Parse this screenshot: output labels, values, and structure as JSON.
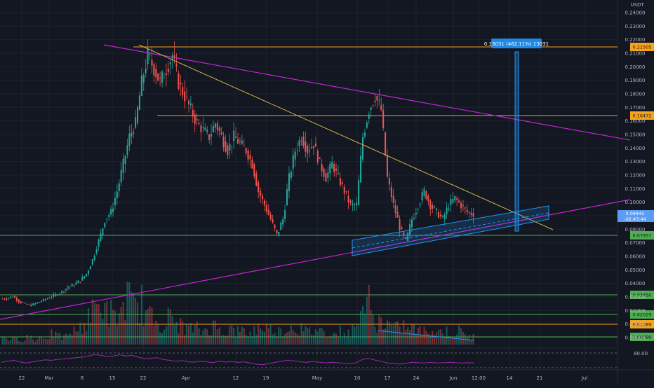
{
  "header": {
    "currency": "USDT"
  },
  "colors": {
    "background": "#131722",
    "grid": "#1e222d",
    "up": "#26a69a",
    "down": "#ef5350",
    "orange": "#f7a21b",
    "green": "#4caf50",
    "magenta": "#c026d3",
    "yellow": "#d4b24a",
    "blue": "#2196f3",
    "rsi": "#9c27b0",
    "price_tag": "#5b9cf6",
    "axis_text": "#b2b5be"
  },
  "chart_data": [
    {
      "type": "candlestick",
      "panel": "price",
      "x_ticks": [
        "22",
        "Mar",
        "8",
        "15",
        "22",
        "Apr",
        "12",
        "19",
        "May",
        "10",
        "17",
        "24",
        "Jun",
        "12:00",
        "14",
        "21",
        "Jul"
      ],
      "y_ticks": [
        "0.24000",
        "0.23000",
        "0.22000",
        "0.21000",
        "0.20000",
        "0.19000",
        "0.18000",
        "0.17000",
        "0.16000",
        "0.15000",
        "0.14000",
        "0.13000",
        "0.12000",
        "0.11000",
        "0.10000",
        "0.09000",
        "0.08000",
        "0.07000",
        "0.06000",
        "0.05000",
        "0.04000",
        "0.03000",
        "0.02000",
        "0.01000",
        "0.00000"
      ],
      "scale": "log",
      "last_price": "0.09445",
      "countdown": "-02:43:44",
      "horizontal_levels": [
        {
          "label": "0.21505",
          "value": 0.21505,
          "color": "orange"
        },
        {
          "label": "0.16472",
          "value": 0.16472,
          "color": "orange"
        },
        {
          "label": "0.07957",
          "value": 0.07957,
          "color": "green"
        },
        {
          "label": "0.03450",
          "value": 0.0345,
          "color": "green"
        },
        {
          "label": "0.02029",
          "value": 0.02029,
          "color": "green"
        },
        {
          "label": "0.01389",
          "value": 0.01389,
          "color": "orange"
        },
        {
          "label": "0.00399",
          "value": 0.00399,
          "color": "green"
        }
      ],
      "measure_label": "0.13031 (462.11%) 13031",
      "close_series": [
        0.032,
        0.034,
        0.03,
        0.028,
        0.027,
        0.029,
        0.031,
        0.033,
        0.035,
        0.037,
        0.04,
        0.042,
        0.045,
        0.05,
        0.06,
        0.075,
        0.09,
        0.095,
        0.11,
        0.13,
        0.15,
        0.16,
        0.19,
        0.21,
        0.2,
        0.19,
        0.2,
        0.21,
        0.19,
        0.18,
        0.17,
        0.16,
        0.155,
        0.15,
        0.16,
        0.15,
        0.14,
        0.15,
        0.145,
        0.14,
        0.13,
        0.11,
        0.1,
        0.09,
        0.08,
        0.09,
        0.12,
        0.14,
        0.15,
        0.14,
        0.145,
        0.13,
        0.12,
        0.13,
        0.12,
        0.11,
        0.1,
        0.1,
        0.15,
        0.17,
        0.18,
        0.17,
        0.12,
        0.1,
        0.085,
        0.075,
        0.09,
        0.1,
        0.11,
        0.1,
        0.095,
        0.09,
        0.1,
        0.105,
        0.1,
        0.095,
        0.094
      ]
    },
    {
      "type": "bar",
      "panel": "volume",
      "values": [
        3,
        2,
        2,
        2,
        3,
        2,
        3,
        3,
        4,
        3,
        3,
        5,
        6,
        8,
        12,
        14,
        16,
        12,
        10,
        13,
        18,
        14,
        16,
        12,
        10,
        9,
        8,
        10,
        8,
        7,
        6,
        6,
        5,
        6,
        7,
        6,
        5,
        6,
        5,
        5,
        4,
        6,
        7,
        6,
        6,
        5,
        6,
        7,
        6,
        5,
        5,
        6,
        5,
        5,
        4,
        5,
        4,
        6,
        14,
        16,
        10,
        9,
        8,
        7,
        6,
        7,
        6,
        6,
        5,
        6,
        5,
        5,
        5,
        4,
        5,
        4,
        3
      ]
    },
    {
      "type": "line",
      "panel": "rsi",
      "y_ticks": [
        "80.00"
      ],
      "values": [
        48,
        52,
        55,
        50,
        46,
        50,
        53,
        57,
        55,
        58,
        60,
        62,
        64,
        66,
        70,
        75,
        72,
        68,
        70,
        74,
        70,
        72,
        66,
        60,
        62,
        64,
        58,
        55,
        52,
        54,
        50,
        49,
        52,
        50,
        47,
        52,
        49,
        51,
        48,
        50,
        46,
        42,
        40,
        44,
        48,
        52,
        55,
        53,
        50,
        48,
        51,
        49,
        46,
        48,
        47,
        45,
        44,
        47,
        58,
        62,
        56,
        52,
        46,
        44,
        42,
        45,
        48,
        47,
        46,
        48,
        46,
        47,
        48,
        47,
        46,
        47,
        46
      ]
    }
  ]
}
